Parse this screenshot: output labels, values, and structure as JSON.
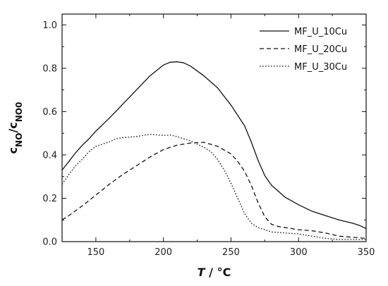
{
  "chart_data": {
    "type": "line",
    "title": "",
    "xlabel": {
      "var": "T",
      "rest": " / °C"
    },
    "ylabel": {
      "main": "c",
      "sub1": "NO",
      "slash": "/c",
      "sub2": "NO0"
    },
    "xlim": [
      125,
      350
    ],
    "ylim": [
      0.0,
      1.05
    ],
    "xticks": [
      150,
      200,
      250,
      300,
      350
    ],
    "yticks": [
      0.0,
      0.2,
      0.4,
      0.6,
      0.8,
      1.0
    ],
    "ytick_labels": [
      "0.0",
      "0.2",
      "0.4",
      "0.6",
      "0.8",
      "1.0"
    ],
    "grid": false,
    "legend_position": "top-right",
    "series": [
      {
        "name": "MF_U_10Cu",
        "style": "solid",
        "color": "#111111",
        "x": [
          125,
          130,
          135,
          140,
          145,
          150,
          160,
          170,
          180,
          190,
          200,
          205,
          210,
          215,
          220,
          230,
          240,
          250,
          260,
          265,
          270,
          275,
          280,
          290,
          300,
          310,
          320,
          330,
          340,
          345,
          350
        ],
        "y": [
          0.33,
          0.37,
          0.41,
          0.445,
          0.475,
          0.51,
          0.57,
          0.635,
          0.7,
          0.765,
          0.815,
          0.828,
          0.83,
          0.825,
          0.81,
          0.765,
          0.71,
          0.63,
          0.535,
          0.46,
          0.375,
          0.305,
          0.26,
          0.205,
          0.17,
          0.14,
          0.12,
          0.1,
          0.085,
          0.075,
          0.06
        ]
      },
      {
        "name": "MF_U_20Cu",
        "style": "dashed",
        "color": "#111111",
        "x": [
          125,
          130,
          140,
          150,
          160,
          170,
          180,
          190,
          200,
          210,
          220,
          230,
          240,
          250,
          255,
          260,
          265,
          270,
          275,
          280,
          285,
          290,
          300,
          310,
          320,
          330,
          340,
          350
        ],
        "y": [
          0.1,
          0.12,
          0.165,
          0.215,
          0.265,
          0.31,
          0.35,
          0.39,
          0.425,
          0.445,
          0.455,
          0.458,
          0.44,
          0.405,
          0.37,
          0.325,
          0.26,
          0.18,
          0.115,
          0.08,
          0.07,
          0.065,
          0.055,
          0.05,
          0.04,
          0.025,
          0.02,
          0.015
        ]
      },
      {
        "name": "MF_U_30Cu",
        "style": "dotted",
        "color": "#111111",
        "x": [
          125,
          130,
          135,
          140,
          145,
          150,
          155,
          160,
          165,
          170,
          180,
          190,
          200,
          205,
          210,
          220,
          230,
          235,
          240,
          245,
          250,
          255,
          260,
          265,
          270,
          275,
          280,
          290,
          300,
          310,
          320,
          330,
          340,
          350
        ],
        "y": [
          0.265,
          0.31,
          0.35,
          0.38,
          0.415,
          0.44,
          0.45,
          0.46,
          0.475,
          0.48,
          0.485,
          0.495,
          0.49,
          0.492,
          0.485,
          0.465,
          0.435,
          0.415,
          0.38,
          0.33,
          0.27,
          0.2,
          0.13,
          0.085,
          0.065,
          0.055,
          0.045,
          0.04,
          0.035,
          0.025,
          0.015,
          0.01,
          0.01,
          0.01
        ]
      }
    ]
  }
}
